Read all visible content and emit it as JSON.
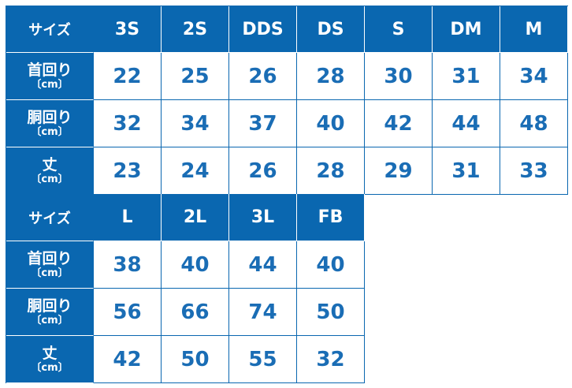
{
  "colors": {
    "header_bg": "#0a67b0",
    "value_text": "#1a6db5"
  },
  "labels": {
    "size": "サイズ",
    "neck": "首回り",
    "chest": "胴回り",
    "length": "丈",
    "unit": "〔cm〕"
  },
  "table1": {
    "sizes": [
      "3S",
      "2S",
      "DDS",
      "DS",
      "S",
      "DM",
      "M"
    ],
    "neck": [
      "22",
      "25",
      "26",
      "28",
      "30",
      "31",
      "34"
    ],
    "chest": [
      "32",
      "34",
      "37",
      "40",
      "42",
      "44",
      "48"
    ],
    "length": [
      "23",
      "24",
      "26",
      "28",
      "29",
      "31",
      "33"
    ]
  },
  "table2": {
    "sizes": [
      "L",
      "2L",
      "3L",
      "FB"
    ],
    "neck": [
      "38",
      "40",
      "44",
      "40"
    ],
    "chest": [
      "56",
      "66",
      "74",
      "50"
    ],
    "length": [
      "42",
      "50",
      "55",
      "32"
    ]
  }
}
